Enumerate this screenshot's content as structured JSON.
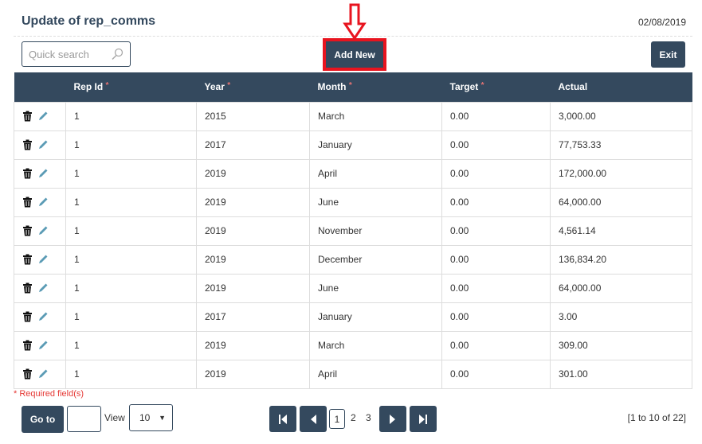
{
  "header": {
    "title": "Update of rep_comms",
    "date": "02/08/2019"
  },
  "toolbar": {
    "search_placeholder": "Quick search",
    "add_new": "Add New",
    "exit": "Exit"
  },
  "table": {
    "columns": [
      {
        "label": "Rep Id",
        "required": "*"
      },
      {
        "label": "Year",
        "required": "*"
      },
      {
        "label": "Month",
        "required": "*"
      },
      {
        "label": "Target",
        "required": "*"
      },
      {
        "label": "Actual",
        "required": ""
      }
    ],
    "rows": [
      [
        "1",
        "2015",
        "March",
        "0.00",
        "3,000.00"
      ],
      [
        "1",
        "2017",
        "January",
        "0.00",
        "77,753.33"
      ],
      [
        "1",
        "2019",
        "April",
        "0.00",
        "172,000.00"
      ],
      [
        "1",
        "2019",
        "June",
        "0.00",
        "64,000.00"
      ],
      [
        "1",
        "2019",
        "November",
        "0.00",
        "4,561.14"
      ],
      [
        "1",
        "2019",
        "December",
        "0.00",
        "136,834.20"
      ],
      [
        "1",
        "2019",
        "June",
        "0.00",
        "64,000.00"
      ],
      [
        "1",
        "2017",
        "January",
        "0.00",
        "3.00"
      ],
      [
        "1",
        "2019",
        "March",
        "0.00",
        "309.00"
      ],
      [
        "1",
        "2019",
        "April",
        "0.00",
        "301.00"
      ]
    ]
  },
  "footer": {
    "required_note": "* Required field(s)",
    "goto": "Go to",
    "goto_value": "",
    "view_label": "View",
    "view_value": "10",
    "pages": [
      "1",
      "2",
      "3"
    ],
    "current_page": "1",
    "range": "[1 to 10 of 22]"
  },
  "colors": {
    "primary": "#34495e",
    "highlight": "#e8141f",
    "required": "#e53935",
    "edit_icon": "#5b9bb5"
  }
}
